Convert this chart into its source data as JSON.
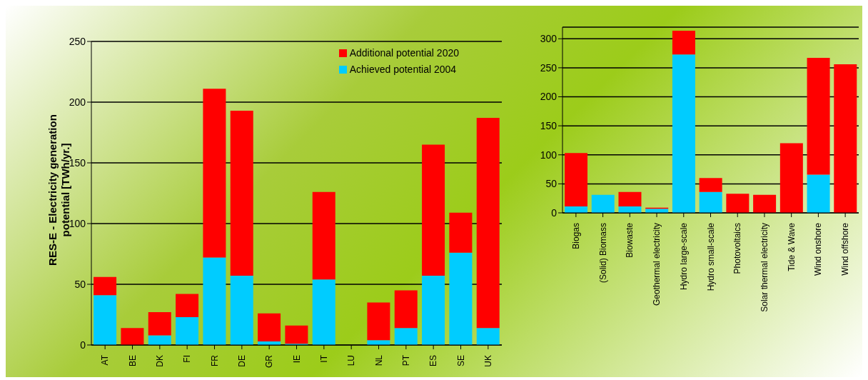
{
  "chart_data": [
    {
      "type": "bar",
      "stacked": true,
      "ylabel": "RES-E - Electricity generation potential [TWh/yr.]",
      "categories": [
        "AT",
        "BE",
        "DK",
        "FI",
        "FR",
        "DE",
        "GR",
        "IE",
        "IT",
        "LU",
        "NL",
        "PT",
        "ES",
        "SE",
        "UK"
      ],
      "series": [
        {
          "name": "Achieved potential 2004",
          "color": "#00ccff",
          "values": [
            41,
            0,
            8,
            23,
            72,
            57,
            3,
            1,
            54,
            0,
            4,
            14,
            57,
            76,
            14
          ]
        },
        {
          "name": "Additional potential 2020",
          "color": "#ff0000",
          "values": [
            15,
            14,
            19,
            19,
            139,
            136,
            23,
            15,
            72,
            0,
            31,
            31,
            108,
            33,
            173
          ]
        }
      ],
      "ylim": [
        0,
        250
      ],
      "yticks": [
        0,
        50,
        100,
        150,
        200,
        250
      ],
      "grid": "y",
      "legend": "top right"
    },
    {
      "type": "bar",
      "stacked": true,
      "categories": [
        "Biogas",
        "(Solid) Biomass",
        "Biowaste",
        "Geothermal electricity",
        "Hydro large-scale",
        "Hydro small-scale",
        "Photovoltaics",
        "Solar thermal electricity",
        "Tide & Wave",
        "Wind onshore",
        "Wind offshore"
      ],
      "series": [
        {
          "color": "#00ccff",
          "values": [
            11,
            31,
            11,
            7,
            273,
            36,
            0,
            0,
            0,
            66,
            0
          ]
        },
        {
          "color": "#ff0000",
          "values": [
            92,
            0,
            25,
            2,
            41,
            24,
            33,
            31,
            120,
            201,
            256
          ]
        }
      ],
      "ylim": [
        0,
        320
      ],
      "yticks": [
        0,
        50,
        100,
        150,
        200,
        250,
        300
      ],
      "grid": "y",
      "legend": false
    }
  ]
}
